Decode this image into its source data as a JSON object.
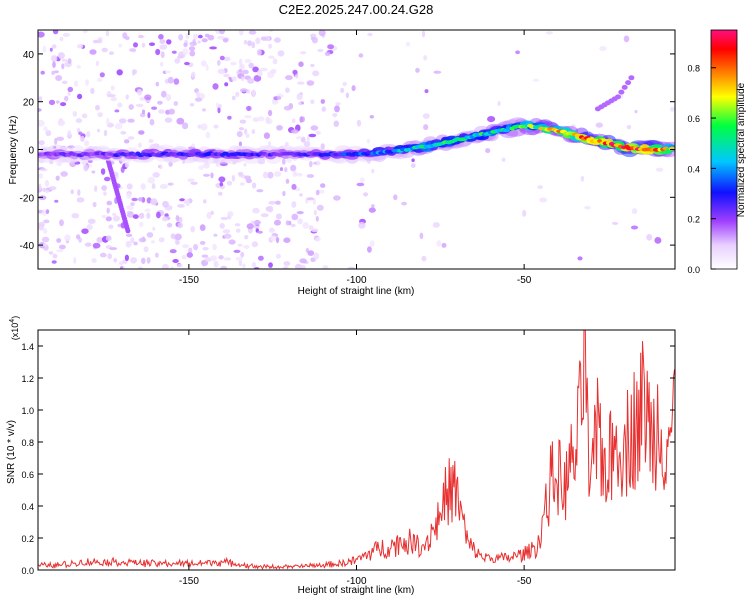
{
  "figure": {
    "title": "C2E2.2025.247.00.24.G28"
  },
  "chart_data": [
    {
      "type": "heatmap",
      "xlabel": "Height of straight line (km)",
      "ylabel": "Frequency (Hz)",
      "xlim": [
        -195,
        -5
      ],
      "ylim": [
        -50,
        50
      ],
      "x_ticks": [
        -150,
        -100,
        -50
      ],
      "y_ticks": [
        -40,
        -20,
        0,
        20,
        40
      ],
      "colorbar": {
        "label": "Normalized spectral amplitude",
        "range": [
          0,
          0.95
        ],
        "ticks": [
          0.0,
          0.2,
          0.4,
          0.6,
          0.8
        ],
        "colormap": [
          "#ffffff",
          "#e8d0ff",
          "#a040ff",
          "#1010ff",
          "#00c8ff",
          "#00ff40",
          "#ffff00",
          "#ff8000",
          "#ff0000",
          "#ff1080"
        ]
      },
      "ridge": {
        "x": [
          -193,
          -180,
          -165,
          -150,
          -135,
          -120,
          -110,
          -100,
          -90,
          -80,
          -70,
          -60,
          -50,
          -40,
          -30,
          -20,
          -12,
          -5
        ],
        "frequency": [
          -2,
          -2,
          -2,
          -2,
          -2,
          -2,
          -2,
          -2,
          -1,
          1,
          4,
          7,
          10,
          8,
          4,
          1,
          0,
          0
        ],
        "amplitude": [
          0.25,
          0.25,
          0.3,
          0.3,
          0.3,
          0.25,
          0.3,
          0.35,
          0.4,
          0.5,
          0.5,
          0.5,
          0.55,
          0.7,
          0.85,
          0.9,
          0.85,
          0.6
        ]
      },
      "branch": {
        "x": [
          -28,
          -22,
          -18
        ],
        "frequency": [
          17,
          22,
          30
        ]
      }
    },
    {
      "type": "line",
      "xlabel": "Height of straight line (km)",
      "ylabel": "SNR (10 * v/v)",
      "y_multiplier": "(x10^4)",
      "xlim": [
        -195,
        -5
      ],
      "ylim": [
        0,
        1.5
      ],
      "x_ticks": [
        -150,
        -100,
        -50
      ],
      "y_ticks": [
        0.0,
        0.2,
        0.4,
        0.6,
        0.8,
        1.0,
        1.2,
        1.4
      ],
      "color": "#e83030",
      "series": [
        {
          "x": [
            -195,
            -190,
            -180,
            -170,
            -160,
            -150,
            -140,
            -130,
            -120,
            -110,
            -105,
            -100,
            -95,
            -90,
            -85,
            -80,
            -78,
            -75,
            -73,
            -71,
            -69,
            -67,
            -65,
            -62,
            -58,
            -54,
            -50,
            -46,
            -44,
            -42,
            -40,
            -38,
            -36,
            -34,
            -33,
            -32,
            -31,
            -30,
            -28,
            -26,
            -24,
            -22,
            -20,
            -18,
            -16,
            -14,
            -12,
            -10,
            -8,
            -6,
            -5
          ],
          "y": [
            0.03,
            0.03,
            0.05,
            0.05,
            0.04,
            0.04,
            0.05,
            0.02,
            0.02,
            0.03,
            0.04,
            0.06,
            0.12,
            0.15,
            0.18,
            0.15,
            0.22,
            0.35,
            0.48,
            0.52,
            0.38,
            0.18,
            0.12,
            0.08,
            0.07,
            0.08,
            0.1,
            0.15,
            0.35,
            0.55,
            0.6,
            0.5,
            0.65,
            0.8,
            1.0,
            1.5,
            0.7,
            0.5,
            0.9,
            0.65,
            0.7,
            0.85,
            0.75,
            0.9,
            0.9,
            1.1,
            0.8,
            0.95,
            0.8,
            0.9,
            1.05
          ]
        }
      ]
    }
  ]
}
